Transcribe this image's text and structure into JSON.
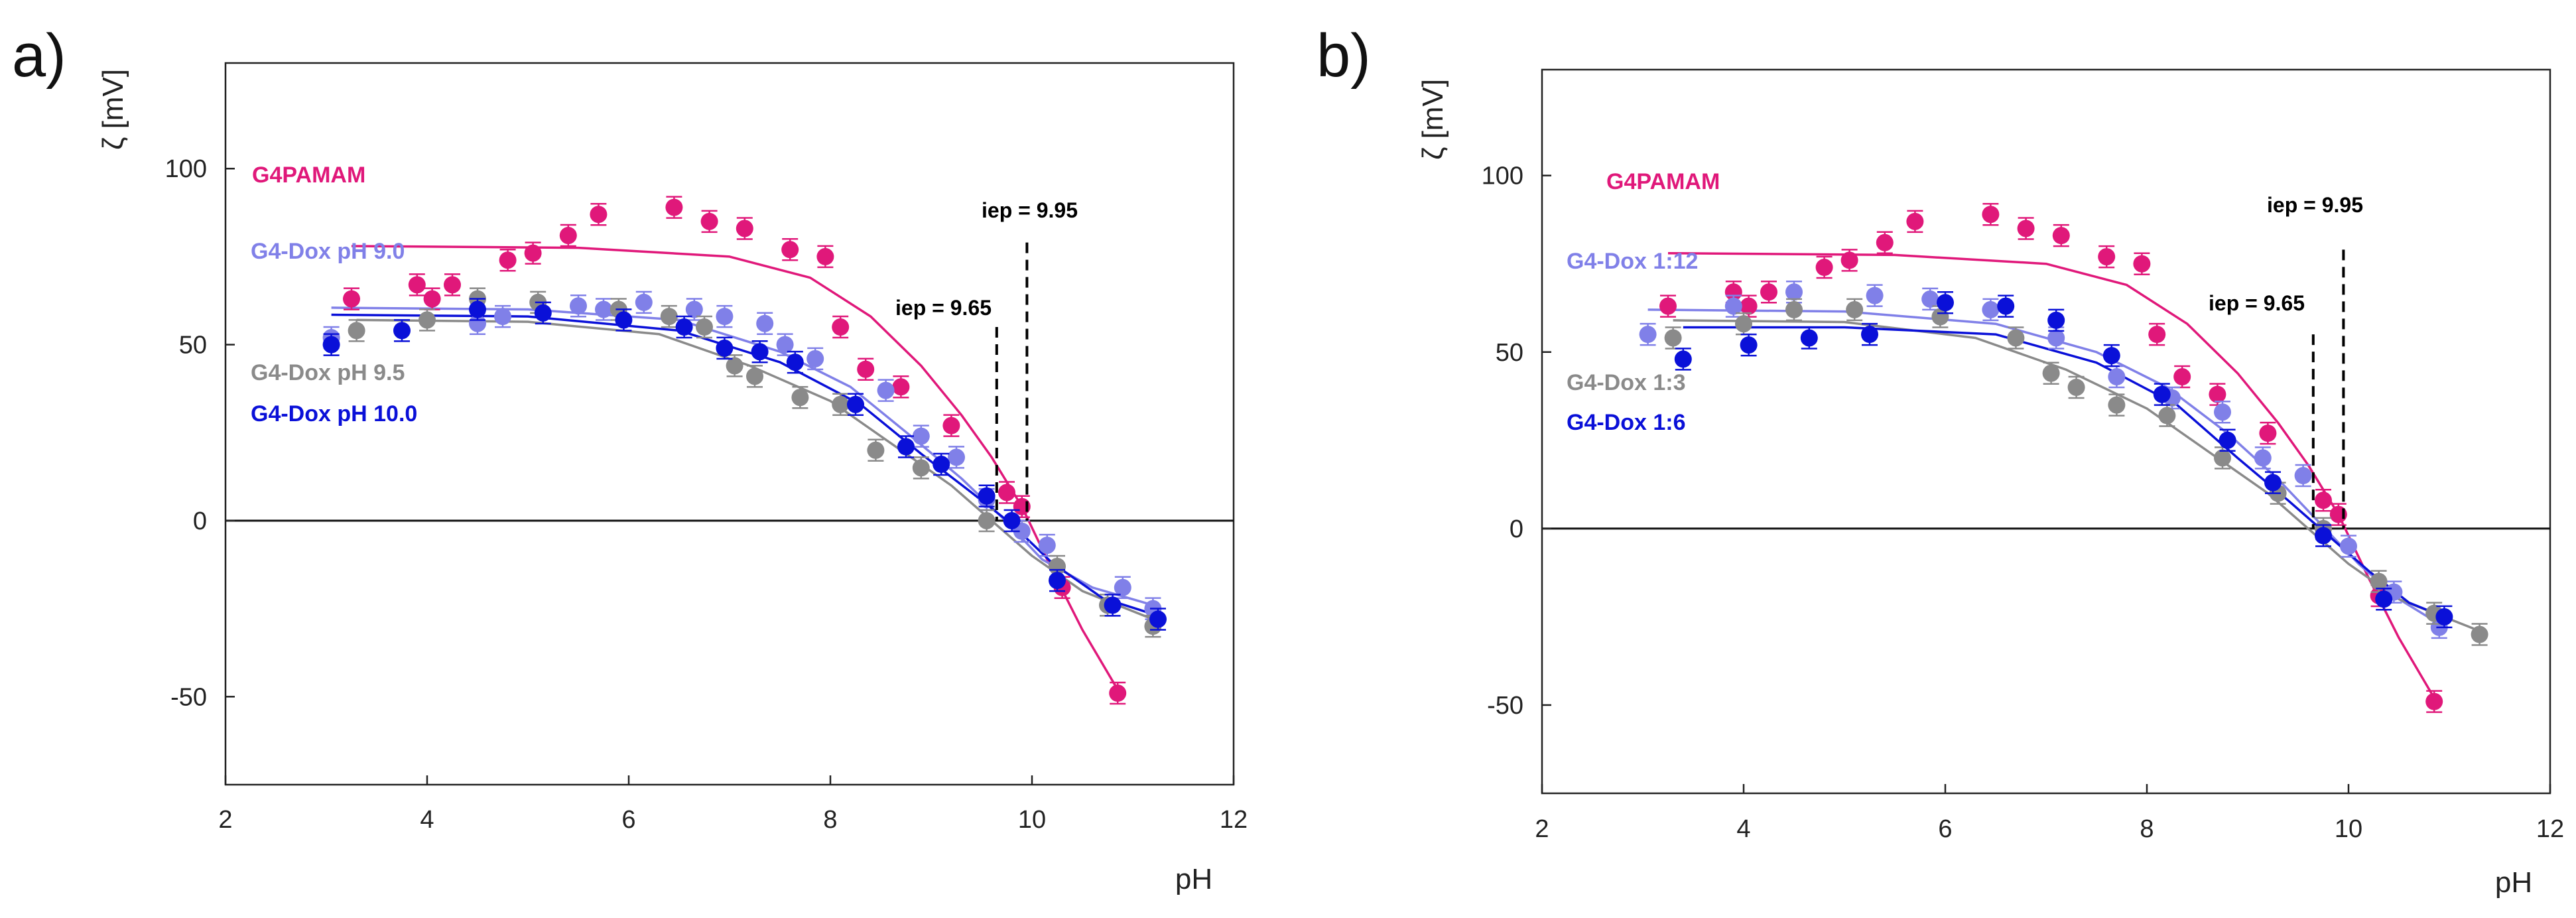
{
  "panels": [
    {
      "label": "a)"
    },
    {
      "label": "b)"
    }
  ],
  "chart_data": [
    {
      "type": "scatter",
      "panel": "a)",
      "xlabel": "pH",
      "ylabel": "ζ [mV]",
      "xlim": [
        2,
        12
      ],
      "ylim": [
        -75,
        130
      ],
      "xticks": [
        "2",
        "4",
        "6",
        "8",
        "10",
        "12"
      ],
      "xtick_values": [
        2,
        4,
        6,
        8,
        10,
        12
      ],
      "yticks": [
        "-50",
        "0",
        "50",
        "100"
      ],
      "ytick_values": [
        -50,
        0,
        50,
        100
      ],
      "zero_line": 0,
      "annotations": [
        {
          "text": "iep =  9.95",
          "value": 9.95,
          "ytop": 79
        },
        {
          "text": "iep = 9.65",
          "value": 9.65,
          "ytop": 55
        }
      ],
      "series": [
        {
          "name": "G4PAMAM",
          "color": "#e0187a",
          "x": [
            3.25,
            3.9,
            4.05,
            4.25,
            4.8,
            5.05,
            5.4,
            5.7,
            6.45,
            6.8,
            7.15,
            7.6,
            7.95,
            8.1,
            8.35,
            8.7,
            9.2,
            9.75,
            9.9,
            10.3,
            10.85
          ],
          "y": [
            63,
            67,
            63,
            67,
            74,
            76,
            81,
            87,
            89,
            85,
            83,
            77,
            75,
            55,
            43,
            38,
            27,
            8,
            4,
            -19,
            -49
          ],
          "fit_x": [
            3.25,
            5.5,
            7.0,
            7.8,
            8.4,
            8.9,
            9.3,
            9.6,
            9.9,
            10.2,
            10.5,
            10.85
          ],
          "fit_y": [
            78,
            77.5,
            75,
            69,
            58,
            44,
            30,
            18,
            4,
            -14,
            -31,
            -48
          ]
        },
        {
          "name": "G4-Dox pH 9.0",
          "color": "#8080e8",
          "x": [
            3.05,
            4.5,
            4.75,
            5.5,
            5.75,
            6.15,
            6.65,
            6.95,
            7.35,
            7.55,
            7.85,
            8.55,
            8.9,
            9.25,
            9.55,
            9.9,
            10.15,
            10.9,
            11.2
          ],
          "y": [
            52,
            56,
            58,
            61,
            60,
            62,
            60,
            58,
            56,
            50,
            46,
            37,
            24,
            18,
            6,
            -3,
            -7,
            -19,
            -25
          ],
          "fit_x": [
            3.05,
            5.0,
            6.5,
            7.5,
            8.2,
            8.8,
            9.3,
            9.7,
            10.1,
            10.6,
            11.2
          ],
          "fit_y": [
            60.5,
            60,
            57,
            48,
            38,
            24,
            12,
            1,
            -11,
            -19,
            -24
          ]
        },
        {
          "name": "G4-Dox pH 9.5",
          "color": "#8a8a8a",
          "x": [
            3.3,
            4.0,
            4.5,
            5.1,
            5.9,
            6.4,
            6.75,
            7.05,
            7.25,
            7.7,
            8.1,
            8.45,
            8.9,
            9.55,
            10.25,
            10.75,
            11.2
          ],
          "y": [
            54,
            57,
            63,
            62,
            60,
            58,
            55,
            44,
            41,
            35,
            33,
            20,
            15,
            0,
            -13,
            -24,
            -30
          ],
          "fit_x": [
            3.3,
            5.0,
            6.3,
            7.2,
            8.0,
            8.7,
            9.2,
            9.6,
            10.0,
            10.5,
            11.2
          ],
          "fit_y": [
            57,
            56.5,
            53,
            44,
            34,
            20,
            10,
            0,
            -10,
            -20,
            -28
          ]
        },
        {
          "name": "G4-Dox pH 10.0",
          "color": "#0a10d8",
          "x": [
            3.05,
            3.75,
            4.5,
            5.15,
            5.95,
            6.55,
            6.95,
            7.3,
            7.65,
            8.25,
            8.75,
            9.1,
            9.55,
            9.8,
            10.25,
            10.8,
            11.25
          ],
          "y": [
            50,
            54,
            60,
            59,
            57,
            55,
            49,
            48,
            45,
            33,
            21,
            16,
            7,
            0,
            -17,
            -24,
            -28
          ],
          "fit_x": [
            3.05,
            5.0,
            6.5,
            7.5,
            8.3,
            8.9,
            9.4,
            9.8,
            10.2,
            10.7,
            11.25
          ],
          "fit_y": [
            58.5,
            58,
            54,
            45,
            33,
            19,
            8,
            -1,
            -12,
            -22,
            -27
          ]
        }
      ]
    },
    {
      "type": "scatter",
      "panel": "b)",
      "xlabel": "pH",
      "ylabel": "ζ [mV]",
      "xlim": [
        2,
        12
      ],
      "ylim": [
        -75,
        130
      ],
      "xticks": [
        "2",
        "4",
        "6",
        "8",
        "10",
        "12"
      ],
      "xtick_values": [
        2,
        4,
        6,
        8,
        10,
        12
      ],
      "yticks": [
        "-50",
        "0",
        "50",
        "100"
      ],
      "ytick_values": [
        -50,
        0,
        50,
        100
      ],
      "zero_line": 0,
      "annotations": [
        {
          "text": "iep =  9.95",
          "value": 9.95,
          "ytop": 79
        },
        {
          "text": "iep = 9.65",
          "value": 9.65,
          "ytop": 55
        }
      ],
      "series": [
        {
          "name": "G4PAMAM",
          "color": "#e0187a",
          "x": [
            3.25,
            3.9,
            4.05,
            4.25,
            4.8,
            5.05,
            5.4,
            5.7,
            6.45,
            6.8,
            7.15,
            7.6,
            7.95,
            8.1,
            8.35,
            8.7,
            9.2,
            9.75,
            9.9,
            10.3,
            10.85
          ],
          "y": [
            63,
            67,
            63,
            67,
            74,
            76,
            81,
            87,
            89,
            85,
            83,
            77,
            75,
            55,
            43,
            38,
            27,
            8,
            4,
            -19,
            -49
          ],
          "fit_x": [
            3.25,
            5.5,
            7.0,
            7.8,
            8.4,
            8.9,
            9.3,
            9.6,
            9.9,
            10.2,
            10.5,
            10.85
          ],
          "fit_y": [
            78,
            77.5,
            75,
            69,
            58,
            44,
            30,
            18,
            4,
            -14,
            -31,
            -48
          ]
        },
        {
          "name": "G4-Dox 1:12",
          "color": "#8080e8",
          "x": [
            3.05,
            3.9,
            4.5,
            5.3,
            5.85,
            6.45,
            7.1,
            7.7,
            8.25,
            8.75,
            9.15,
            9.55,
            10.0,
            10.45,
            10.9
          ],
          "y": [
            55,
            63,
            67,
            66,
            65,
            62,
            54,
            43,
            37,
            33,
            20,
            15,
            -5,
            -18,
            -28
          ],
          "fit_x": [
            3.05,
            5.0,
            6.5,
            7.5,
            8.2,
            8.8,
            9.3,
            9.7,
            10.1,
            10.5,
            10.9
          ],
          "fit_y": [
            62,
            61.5,
            58,
            50,
            40,
            27,
            14,
            2,
            -10,
            -20,
            -27
          ]
        },
        {
          "name": "G4-Dox 1:3",
          "color": "#8a8a8a",
          "x": [
            3.3,
            4.0,
            4.5,
            5.1,
            5.95,
            6.7,
            7.05,
            7.3,
            7.7,
            8.2,
            8.75,
            9.3,
            9.75,
            10.3,
            10.85,
            11.3
          ],
          "y": [
            54,
            58,
            62,
            62,
            60,
            54,
            44,
            40,
            35,
            32,
            20,
            10,
            0,
            -15,
            -24,
            -30
          ],
          "fit_x": [
            3.3,
            5.0,
            6.3,
            7.2,
            8.0,
            8.7,
            9.2,
            9.6,
            10.0,
            10.5,
            11.3
          ],
          "fit_y": [
            59,
            58.5,
            54,
            45,
            34,
            20,
            10,
            0,
            -10,
            -20,
            -29
          ]
        },
        {
          "name": "G4-Dox 1:6",
          "color": "#0a10d8",
          "x": [
            3.4,
            4.05,
            4.65,
            5.25,
            6.0,
            6.6,
            7.1,
            7.65,
            8.15,
            8.8,
            9.25,
            9.75,
            10.35,
            10.95
          ],
          "y": [
            48,
            52,
            54,
            55,
            64,
            63,
            59,
            49,
            38,
            25,
            13,
            -2,
            -20,
            -25
          ],
          "fit_x": [
            3.4,
            5.0,
            6.5,
            7.5,
            8.3,
            8.9,
            9.4,
            9.8,
            10.2,
            10.6,
            10.95
          ],
          "fit_y": [
            57,
            57,
            55,
            47,
            35,
            20,
            8,
            -2,
            -12,
            -21,
            -25
          ]
        }
      ]
    }
  ]
}
